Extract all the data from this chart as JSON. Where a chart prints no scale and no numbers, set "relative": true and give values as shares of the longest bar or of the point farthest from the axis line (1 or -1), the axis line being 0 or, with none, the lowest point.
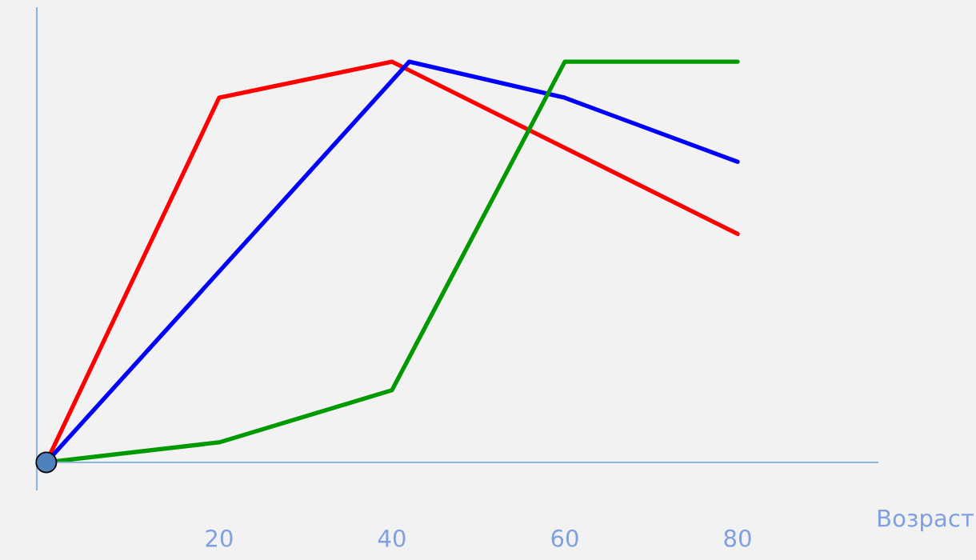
{
  "chart_data": {
    "type": "line",
    "relative": true,
    "xlabel": "Возраст",
    "xlim": [
      -1.1,
      96.2
    ],
    "xticks": [
      20,
      40,
      60,
      80
    ],
    "grid": false,
    "legend": false,
    "marker": "none",
    "line_style": "solid",
    "series": [
      {
        "color": "#ff0000",
        "x": [
          0,
          20,
          40,
          80
        ],
        "values": [
          0,
          0.91,
          1.0,
          0.57
        ]
      },
      {
        "color": "#0000ff",
        "x": [
          0,
          42,
          60,
          80
        ],
        "values": [
          0,
          1.0,
          0.91,
          0.75
        ]
      },
      {
        "color": "#009900",
        "x": [
          0,
          20,
          40,
          60,
          80
        ],
        "values": [
          0,
          0.05,
          0.18,
          1.0,
          1.0
        ]
      },
      {
        "type": "scatter",
        "color": "#4f81bd",
        "marker": "circle",
        "x": [
          0
        ],
        "values": [
          0
        ]
      }
    ]
  }
}
